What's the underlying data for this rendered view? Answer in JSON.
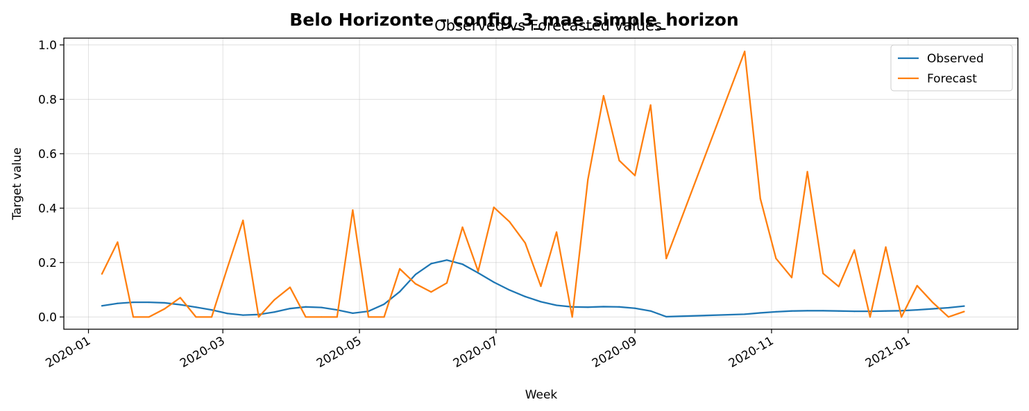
{
  "chart_data": {
    "type": "line",
    "title": "Belo Horizonte - config_3_mae_simple_horizon",
    "subtitle": "Observed vs Forecasted values",
    "xlabel": "Week",
    "ylabel": "Target value",
    "xlim": [
      "2019-12-21",
      "2021-02-19"
    ],
    "ylim": [
      -0.045,
      1.025
    ],
    "xticks": [
      "2020-01",
      "2020-03",
      "2020-05",
      "2020-07",
      "2020-09",
      "2020-11",
      "2021-01"
    ],
    "yticks": [
      0.0,
      0.2,
      0.4,
      0.6,
      0.8,
      1.0
    ],
    "ytick_labels": [
      "0.0",
      "0.2",
      "0.4",
      "0.6",
      "0.8",
      "1.0"
    ],
    "grid": true,
    "legend_position": "top-right",
    "series": [
      {
        "name": "Observed",
        "color": "#1f77b4",
        "points": [
          [
            "2020-01-07",
            0.041
          ],
          [
            "2020-01-14",
            0.05
          ],
          [
            "2020-01-21",
            0.054
          ],
          [
            "2020-01-28",
            0.054
          ],
          [
            "2020-02-04",
            0.052
          ],
          [
            "2020-02-11",
            0.045
          ],
          [
            "2020-02-18",
            0.036
          ],
          [
            "2020-02-25",
            0.026
          ],
          [
            "2020-03-03",
            0.013
          ],
          [
            "2020-03-10",
            0.007
          ],
          [
            "2020-03-17",
            0.009
          ],
          [
            "2020-03-24",
            0.018
          ],
          [
            "2020-03-31",
            0.031
          ],
          [
            "2020-04-07",
            0.037
          ],
          [
            "2020-04-14",
            0.035
          ],
          [
            "2020-04-21",
            0.026
          ],
          [
            "2020-04-28",
            0.014
          ],
          [
            "2020-05-05",
            0.021
          ],
          [
            "2020-05-12",
            0.047
          ],
          [
            "2020-05-19",
            0.093
          ],
          [
            "2020-05-26",
            0.156
          ],
          [
            "2020-06-02",
            0.196
          ],
          [
            "2020-06-09",
            0.209
          ],
          [
            "2020-06-16",
            0.194
          ],
          [
            "2020-06-23",
            0.162
          ],
          [
            "2020-06-30",
            0.128
          ],
          [
            "2020-07-07",
            0.099
          ],
          [
            "2020-07-14",
            0.075
          ],
          [
            "2020-07-21",
            0.056
          ],
          [
            "2020-07-28",
            0.043
          ],
          [
            "2020-08-04",
            0.037
          ],
          [
            "2020-08-11",
            0.036
          ],
          [
            "2020-08-18",
            0.038
          ],
          [
            "2020-08-25",
            0.037
          ],
          [
            "2020-09-01",
            0.032
          ],
          [
            "2020-09-08",
            0.022
          ],
          [
            "2020-09-15",
            0.001
          ],
          [
            "2020-10-20",
            0.01
          ],
          [
            "2020-10-27",
            0.015
          ],
          [
            "2020-11-03",
            0.019
          ],
          [
            "2020-11-10",
            0.022
          ],
          [
            "2020-11-17",
            0.023
          ],
          [
            "2020-11-24",
            0.023
          ],
          [
            "2020-12-01",
            0.022
          ],
          [
            "2020-12-08",
            0.021
          ],
          [
            "2020-12-15",
            0.021
          ],
          [
            "2020-12-22",
            0.022
          ],
          [
            "2020-12-29",
            0.023
          ],
          [
            "2021-01-05",
            0.026
          ],
          [
            "2021-01-12",
            0.03
          ],
          [
            "2021-01-19",
            0.034
          ],
          [
            "2021-01-26",
            0.04
          ]
        ]
      },
      {
        "name": "Forecast",
        "color": "#ff7f0e",
        "points": [
          [
            "2020-01-07",
            0.158
          ],
          [
            "2020-01-14",
            0.275
          ],
          [
            "2020-01-21",
            0.0
          ],
          [
            "2020-01-28",
            0.0
          ],
          [
            "2020-02-04",
            0.03
          ],
          [
            "2020-02-11",
            0.071
          ],
          [
            "2020-02-18",
            0.0
          ],
          [
            "2020-02-25",
            0.0
          ],
          [
            "2020-03-03",
            0.18
          ],
          [
            "2020-03-10",
            0.355
          ],
          [
            "2020-03-17",
            0.0
          ],
          [
            "2020-03-24",
            0.063
          ],
          [
            "2020-03-31",
            0.109
          ],
          [
            "2020-04-07",
            0.0
          ],
          [
            "2020-04-14",
            0.0
          ],
          [
            "2020-04-21",
            0.0
          ],
          [
            "2020-04-28",
            0.393
          ],
          [
            "2020-05-05",
            0.0
          ],
          [
            "2020-05-12",
            0.0
          ],
          [
            "2020-05-19",
            0.177
          ],
          [
            "2020-05-26",
            0.122
          ],
          [
            "2020-06-02",
            0.092
          ],
          [
            "2020-06-09",
            0.125
          ],
          [
            "2020-06-16",
            0.33
          ],
          [
            "2020-06-23",
            0.168
          ],
          [
            "2020-06-30",
            0.403
          ],
          [
            "2020-07-07",
            0.35
          ],
          [
            "2020-07-14",
            0.272
          ],
          [
            "2020-07-21",
            0.113
          ],
          [
            "2020-07-28",
            0.312
          ],
          [
            "2020-08-04",
            0.0
          ],
          [
            "2020-08-11",
            0.505
          ],
          [
            "2020-08-18",
            0.813
          ],
          [
            "2020-08-25",
            0.575
          ],
          [
            "2020-09-01",
            0.52
          ],
          [
            "2020-09-08",
            0.779
          ],
          [
            "2020-09-15",
            0.215
          ],
          [
            "2020-10-20",
            0.976
          ],
          [
            "2020-10-27",
            0.435
          ],
          [
            "2020-11-03",
            0.215
          ],
          [
            "2020-11-10",
            0.145
          ],
          [
            "2020-11-17",
            0.534
          ],
          [
            "2020-11-24",
            0.16
          ],
          [
            "2020-12-01",
            0.112
          ],
          [
            "2020-12-08",
            0.246
          ],
          [
            "2020-12-15",
            0.0
          ],
          [
            "2020-12-22",
            0.257
          ],
          [
            "2020-12-29",
            0.0
          ],
          [
            "2021-01-05",
            0.115
          ],
          [
            "2021-01-12",
            0.053
          ],
          [
            "2021-01-19",
            0.0
          ],
          [
            "2021-01-26",
            0.02
          ]
        ]
      }
    ]
  }
}
